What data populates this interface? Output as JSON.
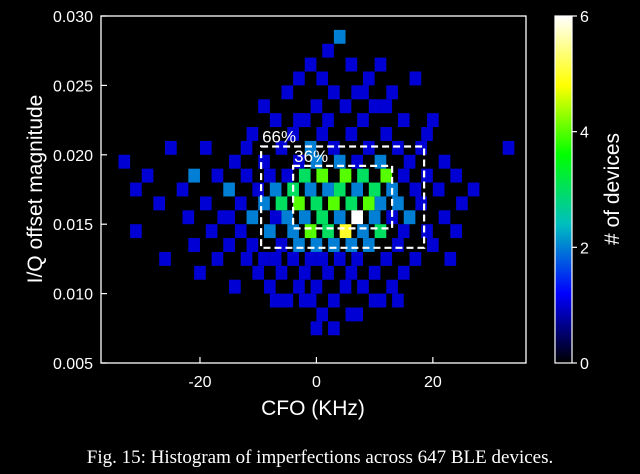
{
  "chart_data": {
    "type": "heatmap",
    "xlabel": "CFO (KHz)",
    "ylabel": "I/Q offset magnitude",
    "xlim": [
      -37,
      36
    ],
    "ylim": [
      0.005,
      0.03
    ],
    "xticks": [
      -20,
      0,
      20
    ],
    "xtick_labels": [
      "-20",
      "0",
      "20"
    ],
    "yticks": [
      0.005,
      0.01,
      0.015,
      0.02,
      0.025,
      0.03
    ],
    "ytick_labels": [
      "0.005",
      "0.010",
      "0.015",
      "0.020",
      "0.025",
      "0.030"
    ],
    "colorbar": {
      "label": "# of devices",
      "range": [
        0,
        6
      ],
      "ticks": [
        0,
        2,
        4,
        6
      ],
      "tick_labels": [
        "0",
        "2",
        "4",
        "6"
      ],
      "colormap": [
        "#000000",
        "#0000ff",
        "#00bfbf",
        "#00ff00",
        "#ffff00",
        "#ffffff"
      ]
    },
    "background": "#000000",
    "grid": false,
    "annotations": [
      {
        "text": "66%",
        "box": {
          "x": [
            -9.5,
            18.5
          ],
          "y": [
            0.0133,
            0.0206
          ]
        }
      },
      {
        "text": "36%",
        "box": {
          "x": [
            -4.0,
            13.0
          ],
          "y": [
            0.0147,
            0.0192
          ]
        }
      }
    ],
    "bins": [
      [
        -33,
        0.0195,
        1
      ],
      [
        -31,
        0.0175,
        1
      ],
      [
        -31,
        0.0145,
        1
      ],
      [
        -29,
        0.0185,
        1
      ],
      [
        -27,
        0.0165,
        1
      ],
      [
        -26,
        0.0125,
        1
      ],
      [
        -25,
        0.0205,
        1
      ],
      [
        -23,
        0.0175,
        1
      ],
      [
        -22,
        0.0155,
        1
      ],
      [
        -21,
        0.0185,
        2
      ],
      [
        -21,
        0.0135,
        1
      ],
      [
        -20,
        0.0115,
        1
      ],
      [
        -19,
        0.0205,
        1
      ],
      [
        -19,
        0.0165,
        1
      ],
      [
        -18,
        0.0145,
        1
      ],
      [
        -17,
        0.0185,
        1
      ],
      [
        -17,
        0.0125,
        1
      ],
      [
        -16,
        0.0155,
        1
      ],
      [
        -15,
        0.0175,
        2
      ],
      [
        -15,
        0.0135,
        1
      ],
      [
        -14,
        0.0195,
        1
      ],
      [
        -14,
        0.0105,
        1
      ],
      [
        -13,
        0.0165,
        1
      ],
      [
        -13,
        0.0145,
        1
      ],
      [
        -12,
        0.0185,
        1
      ],
      [
        -12,
        0.0125,
        1
      ],
      [
        -11,
        0.0215,
        1
      ],
      [
        -11,
        0.0155,
        2
      ],
      [
        -11,
        0.0135,
        1
      ],
      [
        -10,
        0.0175,
        1
      ],
      [
        -10,
        0.0115,
        1
      ],
      [
        -9,
        0.0235,
        1
      ],
      [
        -9,
        0.0195,
        1
      ],
      [
        -9,
        0.0165,
        2
      ],
      [
        -9,
        0.0125,
        1
      ],
      [
        -8,
        0.0185,
        1
      ],
      [
        -8,
        0.0145,
        2
      ],
      [
        -8,
        0.0105,
        1
      ],
      [
        -7,
        0.0225,
        1
      ],
      [
        -7,
        0.0175,
        2
      ],
      [
        -7,
        0.0155,
        1
      ],
      [
        -7,
        0.0125,
        1
      ],
      [
        -6,
        0.0205,
        1
      ],
      [
        -6,
        0.0165,
        3
      ],
      [
        -6,
        0.0135,
        1
      ],
      [
        -6,
        0.0115,
        1
      ],
      [
        -5,
        0.0245,
        1
      ],
      [
        -5,
        0.0185,
        1
      ],
      [
        -5,
        0.0155,
        2
      ],
      [
        -5,
        0.0095,
        1
      ],
      [
        -4,
        0.0215,
        1
      ],
      [
        -4,
        0.0175,
        3
      ],
      [
        -4,
        0.0145,
        2
      ],
      [
        -4,
        0.0125,
        1
      ],
      [
        -3,
        0.0255,
        1
      ],
      [
        -3,
        0.0195,
        1
      ],
      [
        -3,
        0.0165,
        4
      ],
      [
        -3,
        0.0135,
        2
      ],
      [
        -3,
        0.0105,
        1
      ],
      [
        -2,
        0.0225,
        1
      ],
      [
        -2,
        0.0185,
        3
      ],
      [
        -2,
        0.0155,
        2
      ],
      [
        -2,
        0.0115,
        1
      ],
      [
        -1,
        0.0265,
        1
      ],
      [
        -1,
        0.0205,
        2
      ],
      [
        -1,
        0.0175,
        2
      ],
      [
        -1,
        0.0145,
        4
      ],
      [
        -1,
        0.0125,
        1
      ],
      [
        -1,
        0.0095,
        1
      ],
      [
        0,
        0.0235,
        1
      ],
      [
        0,
        0.0195,
        2
      ],
      [
        0,
        0.0165,
        3
      ],
      [
        0,
        0.0135,
        2
      ],
      [
        0,
        0.0105,
        1
      ],
      [
        1,
        0.0255,
        1
      ],
      [
        1,
        0.0215,
        1
      ],
      [
        1,
        0.0185,
        4
      ],
      [
        1,
        0.0155,
        3
      ],
      [
        1,
        0.0125,
        1
      ],
      [
        1,
        0.0085,
        1
      ],
      [
        2,
        0.0275,
        1
      ],
      [
        2,
        0.0225,
        1
      ],
      [
        2,
        0.0175,
        2
      ],
      [
        2,
        0.0145,
        3
      ],
      [
        2,
        0.0115,
        1
      ],
      [
        3,
        0.0245,
        1
      ],
      [
        3,
        0.0205,
        1
      ],
      [
        3,
        0.0165,
        4
      ],
      [
        3,
        0.0135,
        2
      ],
      [
        3,
        0.0095,
        1
      ],
      [
        4,
        0.0285,
        2
      ],
      [
        4,
        0.0195,
        2
      ],
      [
        4,
        0.0175,
        3
      ],
      [
        4,
        0.0155,
        2
      ],
      [
        4,
        0.0125,
        1
      ],
      [
        5,
        0.0235,
        1
      ],
      [
        5,
        0.0185,
        4
      ],
      [
        5,
        0.0145,
        5
      ],
      [
        5,
        0.0105,
        1
      ],
      [
        6,
        0.0265,
        1
      ],
      [
        6,
        0.0215,
        1
      ],
      [
        6,
        0.0165,
        3
      ],
      [
        6,
        0.0135,
        2
      ],
      [
        6,
        0.0115,
        1
      ],
      [
        7,
        0.0245,
        1
      ],
      [
        7,
        0.0195,
        1
      ],
      [
        7,
        0.0175,
        2
      ],
      [
        7,
        0.0155,
        6
      ],
      [
        7,
        0.0125,
        1
      ],
      [
        7,
        0.0085,
        1
      ],
      [
        8,
        0.0225,
        1
      ],
      [
        8,
        0.0185,
        3
      ],
      [
        8,
        0.0145,
        2
      ],
      [
        8,
        0.0105,
        1
      ],
      [
        9,
        0.0255,
        1
      ],
      [
        9,
        0.0205,
        1
      ],
      [
        9,
        0.0165,
        4
      ],
      [
        9,
        0.0135,
        2
      ],
      [
        10,
        0.0235,
        1
      ],
      [
        10,
        0.0175,
        3
      ],
      [
        10,
        0.0155,
        2
      ],
      [
        10,
        0.0115,
        1
      ],
      [
        11,
        0.0265,
        1
      ],
      [
        11,
        0.0195,
        2
      ],
      [
        11,
        0.0165,
        2
      ],
      [
        11,
        0.0145,
        3
      ],
      [
        11,
        0.0095,
        1
      ],
      [
        12,
        0.0215,
        1
      ],
      [
        12,
        0.0185,
        4
      ],
      [
        12,
        0.0125,
        1
      ],
      [
        13,
        0.0245,
        1
      ],
      [
        13,
        0.0175,
        2
      ],
      [
        13,
        0.0155,
        1
      ],
      [
        13,
        0.0105,
        1
      ],
      [
        14,
        0.0205,
        1
      ],
      [
        14,
        0.0165,
        2
      ],
      [
        14,
        0.0135,
        1
      ],
      [
        15,
        0.0225,
        1
      ],
      [
        15,
        0.0185,
        1
      ],
      [
        15,
        0.0145,
        1
      ],
      [
        15,
        0.0115,
        1
      ],
      [
        16,
        0.0195,
        1
      ],
      [
        16,
        0.0155,
        2
      ],
      [
        17,
        0.0255,
        1
      ],
      [
        17,
        0.0175,
        1
      ],
      [
        17,
        0.0125,
        1
      ],
      [
        18,
        0.0205,
        1
      ],
      [
        18,
        0.0165,
        1
      ],
      [
        19,
        0.0185,
        1
      ],
      [
        19,
        0.0145,
        1
      ],
      [
        20,
        0.0225,
        1
      ],
      [
        20,
        0.0135,
        1
      ],
      [
        21,
        0.0175,
        1
      ],
      [
        22,
        0.0195,
        1
      ],
      [
        22,
        0.0155,
        1
      ],
      [
        23,
        0.0125,
        1
      ],
      [
        24,
        0.0185,
        1
      ],
      [
        25,
        0.0165,
        1
      ],
      [
        27,
        0.0175,
        1
      ],
      [
        33,
        0.0205,
        1
      ],
      [
        -2,
        0.0095,
        1
      ],
      [
        3,
        0.0075,
        1
      ],
      [
        6,
        0.0085,
        1
      ],
      [
        -7,
        0.0095,
        1
      ],
      [
        10,
        0.0095,
        1
      ],
      [
        -3,
        0.0225,
        1
      ],
      [
        8,
        0.0245,
        1
      ],
      [
        12,
        0.0235,
        1
      ],
      [
        0,
        0.0075,
        1
      ],
      [
        14,
        0.0095,
        1
      ],
      [
        -12,
        0.0205,
        1
      ],
      [
        19,
        0.0215,
        1
      ],
      [
        -15,
        0.0155,
        1
      ],
      [
        24,
        0.0145,
        1
      ]
    ]
  },
  "caption": "Fig. 15: Histogram of imperfections across 647 BLE devices."
}
